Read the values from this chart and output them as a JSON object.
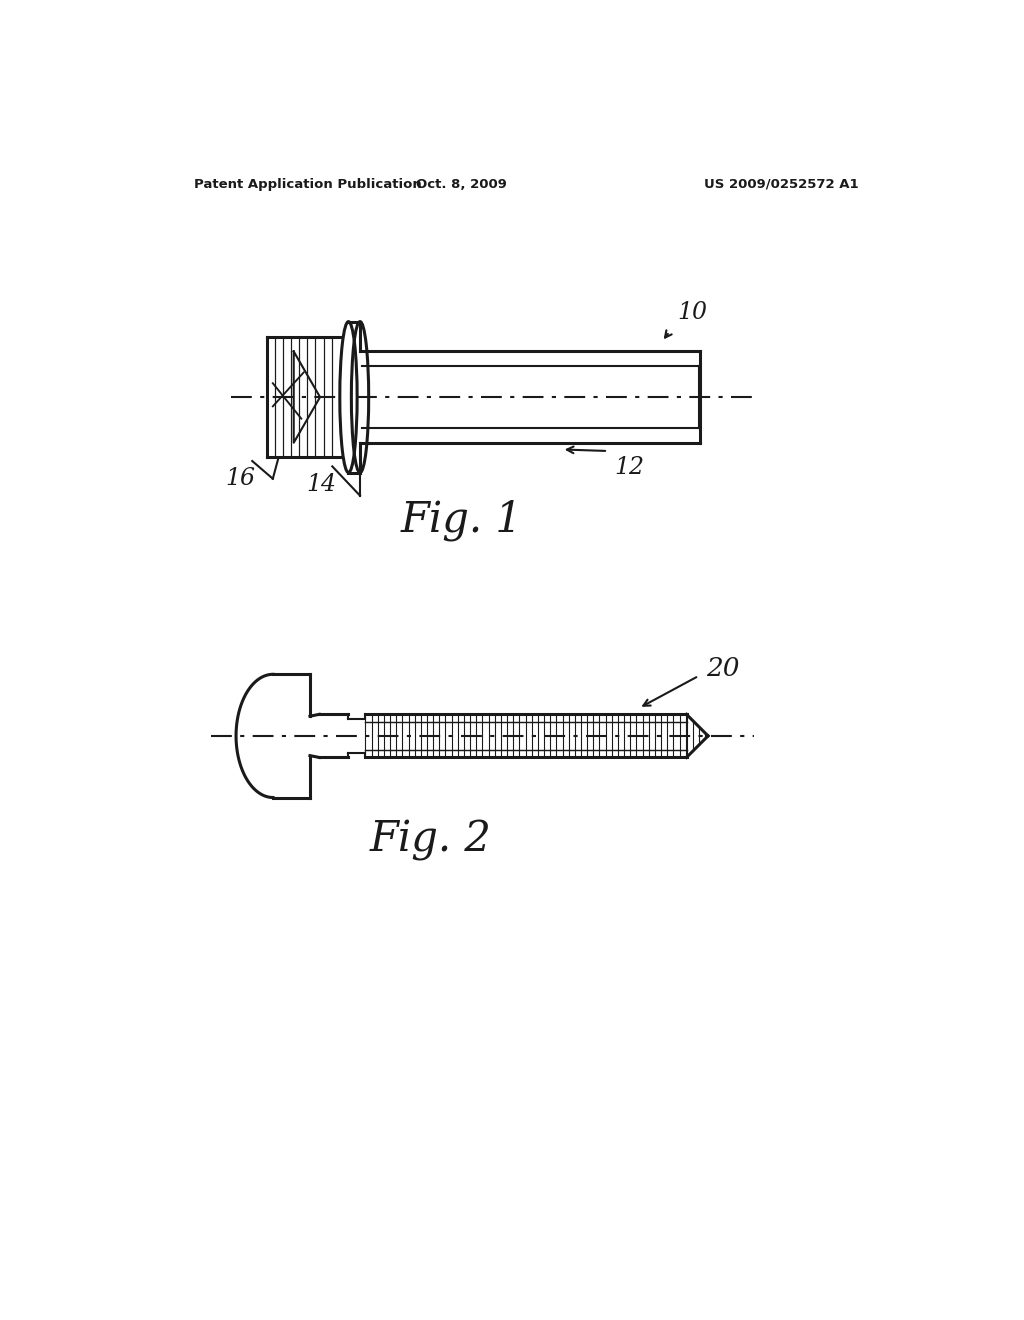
{
  "background_color": "#ffffff",
  "header_left": "Patent Application Publication",
  "header_center": "Oct. 8, 2009",
  "header_right": "US 2009/0252572 A1",
  "fig1_label": "Fig. 1",
  "fig2_label": "Fig. 2",
  "ref10": "10",
  "ref12": "12",
  "ref14": "14",
  "ref16": "16",
  "ref20": "20",
  "line_color": "#1a1a1a",
  "lw_thin": 0.8,
  "lw_med": 1.5,
  "lw_thick": 2.2
}
